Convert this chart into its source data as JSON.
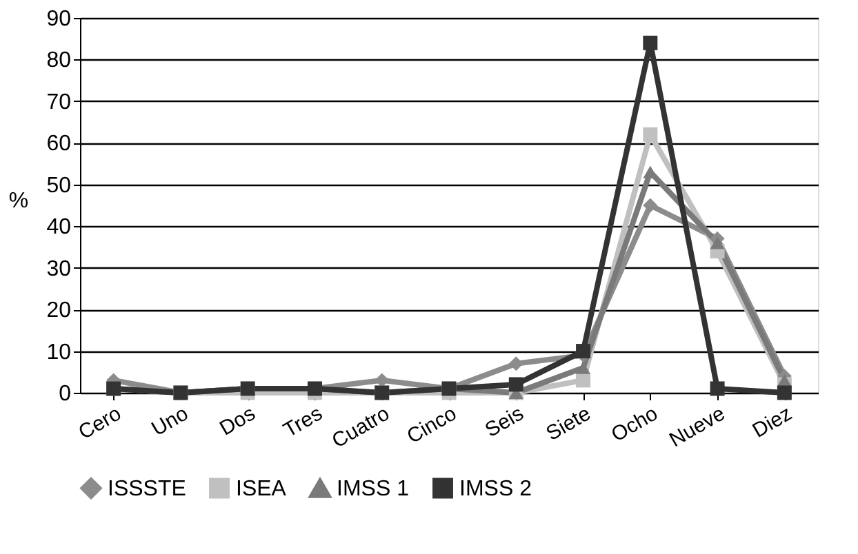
{
  "chart_data": {
    "type": "line",
    "ylabel": "%",
    "categories": [
      "Cero",
      "Uno",
      "Dos",
      "Tres",
      "Cuatro",
      "Cinco",
      "Seis",
      "Siete",
      "Ocho",
      "Nueve",
      "Diez"
    ],
    "series": [
      {
        "name": "ISSSTE",
        "color": "#8c8c8c",
        "marker": "diamond",
        "values": [
          3,
          0,
          1,
          1,
          3,
          1,
          7,
          9,
          45,
          37,
          4
        ]
      },
      {
        "name": "ISEA",
        "color": "#c0c0c0",
        "marker": "square",
        "values": [
          1,
          0,
          0,
          0,
          0,
          0,
          0,
          3,
          62,
          34,
          2
        ]
      },
      {
        "name": "IMSS 1",
        "color": "#7a7a7a",
        "marker": "triangle",
        "values": [
          1,
          0,
          1,
          1,
          0,
          1,
          0,
          6,
          53,
          36,
          3
        ]
      },
      {
        "name": "IMSS 2",
        "color": "#333333",
        "marker": "square",
        "values": [
          1,
          0,
          1,
          1,
          0,
          1,
          2,
          10,
          84,
          1,
          0
        ]
      }
    ],
    "ylim": [
      0,
      90
    ],
    "yticks": [
      0,
      10,
      20,
      30,
      40,
      50,
      60,
      70,
      80,
      90
    ],
    "grid": "y",
    "legend": "bottom",
    "line_style": "solid"
  }
}
